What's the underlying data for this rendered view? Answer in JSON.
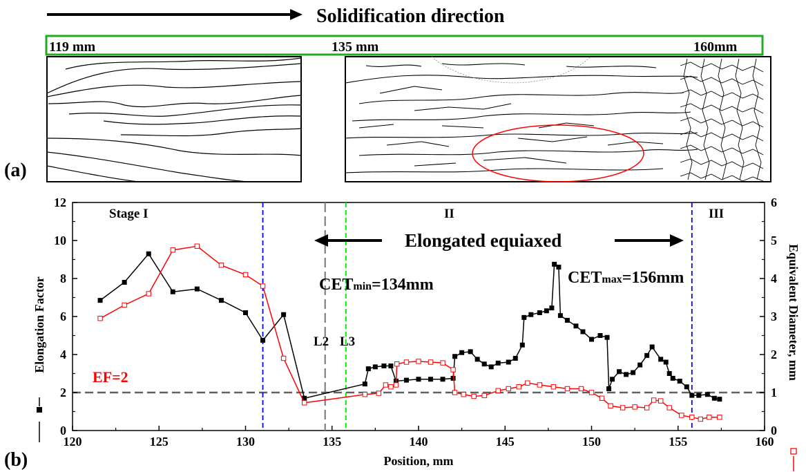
{
  "top": {
    "direction_label": "Solidification direction",
    "scale_labels": [
      "119 mm",
      "135 mm",
      "160mm"
    ],
    "panel_a_label": "(a)"
  },
  "panel_b_label": "(b)",
  "colors": {
    "ef_series": "#000000",
    "diameter_series": "#ff0000",
    "stage_line_blue": "#0000ff",
    "cet_line_grey": "#808080",
    "l3_line_green": "#00ee00",
    "ef_ref_line": "#606060",
    "frame_green": "#22aa22",
    "ellipse": "#ff0000"
  },
  "chart_data": {
    "type": "line",
    "xlabel": "Position, mm",
    "ylabel": "Elongation Factor",
    "y2label": "Equivalent Diameter, mm",
    "xlim": [
      120,
      160
    ],
    "ylim": [
      0,
      12
    ],
    "y2lim": [
      0,
      6
    ],
    "xticks": [
      120,
      125,
      130,
      135,
      140,
      145,
      150,
      155,
      160
    ],
    "yticks": [
      0,
      2,
      4,
      6,
      8,
      10,
      12
    ],
    "y2ticks": [
      0,
      1,
      2,
      3,
      4,
      5,
      6
    ],
    "annotations": {
      "stage1": "Stage I",
      "stage2": "II",
      "stage3": "III",
      "elongated": "Elongated equiaxed",
      "cet_min": {
        "main": "CET",
        "sub": "min",
        "rest": "=134mm"
      },
      "cet_max": {
        "main": "CET",
        "sub": "max",
        "rest": "=156mm"
      },
      "l2": "L2",
      "l3": "L3",
      "ef_ref": "EF=2"
    },
    "reference_lines": {
      "ef_horizontal": 2,
      "blue_vertical": [
        131,
        155.8
      ],
      "grey_vertical": [
        134.6
      ],
      "green_vertical": [
        135.8
      ]
    },
    "series": [
      {
        "axis": "left",
        "points": [
          [
            121.6,
            6.85
          ],
          [
            123,
            7.8
          ],
          [
            124.4,
            9.3
          ],
          [
            125.8,
            7.3
          ],
          [
            127.2,
            7.45
          ],
          [
            128.6,
            6.85
          ],
          [
            130,
            6.2
          ],
          [
            131,
            4.75
          ],
          [
            132.2,
            6.1
          ],
          [
            133.4,
            1.7
          ],
          [
            136.9,
            2.45
          ],
          [
            137.1,
            3.25
          ],
          [
            137.5,
            3.35
          ],
          [
            138,
            3.4
          ],
          [
            138.4,
            3.4
          ],
          [
            138.7,
            2.6
          ],
          [
            139.3,
            2.65
          ],
          [
            140,
            2.7
          ],
          [
            140.7,
            2.7
          ],
          [
            141.4,
            2.7
          ],
          [
            142,
            2.75
          ],
          [
            142.1,
            3.9
          ],
          [
            142.5,
            4.1
          ],
          [
            143,
            4.15
          ],
          [
            143.4,
            3.75
          ],
          [
            143.8,
            3.5
          ],
          [
            144.2,
            3.35
          ],
          [
            144.6,
            3.55
          ],
          [
            145.2,
            3.6
          ],
          [
            145.6,
            3.8
          ],
          [
            146,
            4.5
          ],
          [
            146.1,
            5.95
          ],
          [
            146.5,
            6.1
          ],
          [
            147,
            6.2
          ],
          [
            147.4,
            6.3
          ],
          [
            147.7,
            6.45
          ],
          [
            147.85,
            8.75
          ],
          [
            148.1,
            8.6
          ],
          [
            148.2,
            6.05
          ],
          [
            148.6,
            5.8
          ],
          [
            149.1,
            5.5
          ],
          [
            149.5,
            5.2
          ],
          [
            150,
            4.8
          ],
          [
            150.5,
            5
          ],
          [
            150.9,
            4.9
          ],
          [
            151,
            2.2
          ],
          [
            151.2,
            2.7
          ],
          [
            151.6,
            3.1
          ],
          [
            152,
            2.95
          ],
          [
            152.4,
            3.05
          ],
          [
            152.8,
            3.45
          ],
          [
            153.2,
            3.95
          ],
          [
            153.5,
            4.4
          ],
          [
            154,
            3.75
          ],
          [
            154.3,
            3.6
          ],
          [
            154.5,
            3
          ],
          [
            154.7,
            2.75
          ],
          [
            155.1,
            2.6
          ],
          [
            155.5,
            2.3
          ],
          [
            155.8,
            1.85
          ],
          [
            156.2,
            1.85
          ],
          [
            156.7,
            1.9
          ],
          [
            157.1,
            1.7
          ],
          [
            157.4,
            1.65
          ]
        ]
      },
      {
        "axis": "right",
        "points": [
          [
            121.6,
            2.95
          ],
          [
            123,
            3.3
          ],
          [
            124.4,
            3.6
          ],
          [
            125.8,
            4.75
          ],
          [
            127.2,
            4.85
          ],
          [
            128.6,
            4.35
          ],
          [
            130,
            4.1
          ],
          [
            131,
            3.8
          ],
          [
            132.2,
            1.9
          ],
          [
            133.4,
            0.73
          ],
          [
            136.9,
            0.95
          ],
          [
            137.7,
            0.98
          ],
          [
            138.1,
            1.2
          ],
          [
            138.4,
            1.15
          ],
          [
            138.7,
            1.2
          ],
          [
            138.75,
            1.75
          ],
          [
            139.3,
            1.8
          ],
          [
            140,
            1.82
          ],
          [
            140.7,
            1.8
          ],
          [
            141.4,
            1.78
          ],
          [
            142,
            1.6
          ],
          [
            142.1,
            1
          ],
          [
            142.6,
            0.95
          ],
          [
            143.2,
            0.9
          ],
          [
            143.8,
            0.92
          ],
          [
            144.6,
            1.05
          ],
          [
            145.2,
            1.1
          ],
          [
            145.8,
            1.15
          ],
          [
            146.3,
            1.25
          ],
          [
            147,
            1.2
          ],
          [
            147.8,
            1.15
          ],
          [
            148.6,
            1.1
          ],
          [
            149.4,
            1.1
          ],
          [
            150,
            1
          ],
          [
            150.6,
            0.85
          ],
          [
            151.1,
            0.65
          ],
          [
            151.8,
            0.6
          ],
          [
            152.5,
            0.62
          ],
          [
            153.2,
            0.6
          ],
          [
            153.6,
            0.8
          ],
          [
            154,
            0.78
          ],
          [
            154.5,
            0.6
          ],
          [
            155.2,
            0.4
          ],
          [
            155.8,
            0.35
          ],
          [
            156.3,
            0.3
          ],
          [
            156.8,
            0.35
          ],
          [
            157.4,
            0.35
          ]
        ]
      }
    ]
  }
}
